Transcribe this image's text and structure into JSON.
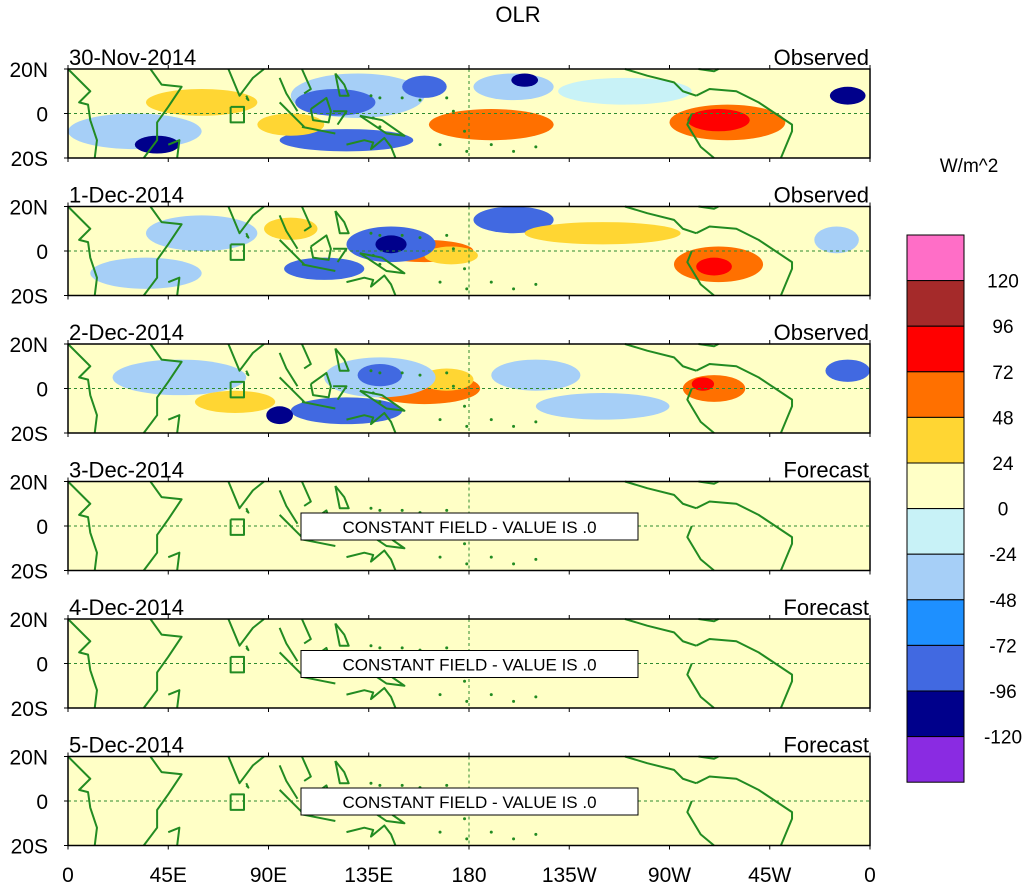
{
  "chart_data": {
    "type": "heatmap",
    "title": "OLR",
    "units": "W/m^2",
    "x_ticks": [
      "0",
      "45E",
      "90E",
      "135E",
      "180",
      "135W",
      "90W",
      "45W",
      "0"
    ],
    "x_tick_lon": [
      0,
      45,
      90,
      135,
      180,
      225,
      270,
      315,
      360
    ],
    "y_ticks": [
      "20N",
      "0",
      "20S"
    ],
    "y_tick_lat": [
      20,
      0,
      -20
    ],
    "ylim": [
      -20,
      20
    ],
    "xlim": [
      0,
      360
    ],
    "colorbar": {
      "levels": [
        "120",
        "96",
        "72",
        "48",
        "24",
        "0",
        "-24",
        "-48",
        "-72",
        "-96",
        "-120"
      ],
      "colors": [
        "#ff6ec7",
        "#a52a2a",
        "#ff0000",
        "#ff7000",
        "#ffd633",
        "#ffffc6",
        "#c8f2f7",
        "#a6cff7",
        "#1e90ff",
        "#4169e1",
        "#00008b",
        "#8a2be2"
      ]
    },
    "panels": [
      {
        "date": "30-Nov-2014",
        "status": "Observed",
        "blobs": [
          {
            "lon": 296,
            "lat": -4,
            "rlon": 26,
            "rlat": 8,
            "color": "#ff7000"
          },
          {
            "lon": 292,
            "lat": -3,
            "rlon": 14,
            "rlat": 5,
            "color": "#ff0000"
          },
          {
            "lon": 190,
            "lat": -5,
            "rlon": 28,
            "rlat": 7,
            "color": "#ff7000"
          },
          {
            "lon": 188,
            "lat": -5,
            "rlon": 16,
            "rlat": 4,
            "color": "#ff7000"
          },
          {
            "lon": 200,
            "lat": 12,
            "rlon": 18,
            "rlat": 6,
            "color": "#a6cff7"
          },
          {
            "lon": 205,
            "lat": 15,
            "rlon": 6,
            "rlat": 3,
            "color": "#00008b"
          },
          {
            "lon": 130,
            "lat": 8,
            "rlon": 30,
            "rlat": 10,
            "color": "#a6cff7"
          },
          {
            "lon": 120,
            "lat": 5,
            "rlon": 18,
            "rlat": 6,
            "color": "#4169e1"
          },
          {
            "lon": 160,
            "lat": 12,
            "rlon": 10,
            "rlat": 5,
            "color": "#4169e1"
          },
          {
            "lon": 125,
            "lat": -12,
            "rlon": 30,
            "rlat": 5,
            "color": "#4169e1"
          },
          {
            "lon": 30,
            "lat": -8,
            "rlon": 30,
            "rlat": 8,
            "color": "#a6cff7"
          },
          {
            "lon": 40,
            "lat": -14,
            "rlon": 10,
            "rlat": 4,
            "color": "#00008b"
          },
          {
            "lon": 60,
            "lat": 5,
            "rlon": 25,
            "rlat": 6,
            "color": "#ffd633"
          },
          {
            "lon": 100,
            "lat": -5,
            "rlon": 15,
            "rlat": 5,
            "color": "#ffd633"
          },
          {
            "lon": 350,
            "lat": 8,
            "rlon": 8,
            "rlat": 4,
            "color": "#00008b"
          },
          {
            "lon": 250,
            "lat": 10,
            "rlon": 30,
            "rlat": 6,
            "color": "#c8f2f7"
          }
        ]
      },
      {
        "date": "1-Dec-2014",
        "status": "Observed",
        "blobs": [
          {
            "lon": 292,
            "lat": -6,
            "rlon": 20,
            "rlat": 8,
            "color": "#ff7000"
          },
          {
            "lon": 290,
            "lat": -7,
            "rlon": 8,
            "rlat": 4,
            "color": "#ff0000"
          },
          {
            "lon": 160,
            "lat": 0,
            "rlon": 22,
            "rlat": 5,
            "color": "#ff7000"
          },
          {
            "lon": 172,
            "lat": -2,
            "rlon": 12,
            "rlat": 4,
            "color": "#ffd633"
          },
          {
            "lon": 145,
            "lat": 3,
            "rlon": 20,
            "rlat": 8,
            "color": "#4169e1"
          },
          {
            "lon": 145,
            "lat": 3,
            "rlon": 7,
            "rlat": 4,
            "color": "#00008b"
          },
          {
            "lon": 115,
            "lat": -8,
            "rlon": 18,
            "rlat": 5,
            "color": "#4169e1"
          },
          {
            "lon": 200,
            "lat": 14,
            "rlon": 18,
            "rlat": 6,
            "color": "#4169e1"
          },
          {
            "lon": 60,
            "lat": 8,
            "rlon": 25,
            "rlat": 8,
            "color": "#a6cff7"
          },
          {
            "lon": 35,
            "lat": -10,
            "rlon": 25,
            "rlat": 7,
            "color": "#a6cff7"
          },
          {
            "lon": 100,
            "lat": 10,
            "rlon": 12,
            "rlat": 5,
            "color": "#ffd633"
          },
          {
            "lon": 240,
            "lat": 8,
            "rlon": 35,
            "rlat": 5,
            "color": "#ffd633"
          },
          {
            "lon": 345,
            "lat": 5,
            "rlon": 10,
            "rlat": 6,
            "color": "#a6cff7"
          }
        ]
      },
      {
        "date": "2-Dec-2014",
        "status": "Observed",
        "blobs": [
          {
            "lon": 160,
            "lat": 0,
            "rlon": 25,
            "rlat": 7,
            "color": "#ff7000"
          },
          {
            "lon": 170,
            "lat": 4,
            "rlon": 12,
            "rlat": 5,
            "color": "#ffd633"
          },
          {
            "lon": 290,
            "lat": 0,
            "rlon": 14,
            "rlat": 6,
            "color": "#ff7000"
          },
          {
            "lon": 285,
            "lat": 2,
            "rlon": 5,
            "rlat": 3,
            "color": "#ff0000"
          },
          {
            "lon": 140,
            "lat": 5,
            "rlon": 25,
            "rlat": 9,
            "color": "#a6cff7"
          },
          {
            "lon": 140,
            "lat": 6,
            "rlon": 10,
            "rlat": 5,
            "color": "#4169e1"
          },
          {
            "lon": 125,
            "lat": -10,
            "rlon": 25,
            "rlat": 6,
            "color": "#4169e1"
          },
          {
            "lon": 95,
            "lat": -12,
            "rlon": 6,
            "rlat": 4,
            "color": "#00008b"
          },
          {
            "lon": 210,
            "lat": 6,
            "rlon": 20,
            "rlat": 7,
            "color": "#a6cff7"
          },
          {
            "lon": 50,
            "lat": 5,
            "rlon": 30,
            "rlat": 8,
            "color": "#a6cff7"
          },
          {
            "lon": 75,
            "lat": -6,
            "rlon": 18,
            "rlat": 5,
            "color": "#ffd633"
          },
          {
            "lon": 350,
            "lat": 8,
            "rlon": 10,
            "rlat": 5,
            "color": "#4169e1"
          },
          {
            "lon": 240,
            "lat": -8,
            "rlon": 30,
            "rlat": 6,
            "color": "#a6cff7"
          }
        ]
      },
      {
        "date": "3-Dec-2014",
        "status": "Forecast",
        "message": "CONSTANT FIELD - VALUE IS .0",
        "blobs": []
      },
      {
        "date": "4-Dec-2014",
        "status": "Forecast",
        "message": "CONSTANT FIELD - VALUE IS .0",
        "blobs": []
      },
      {
        "date": "5-Dec-2014",
        "status": "Forecast",
        "message": "CONSTANT FIELD - VALUE IS .0",
        "blobs": []
      }
    ]
  }
}
